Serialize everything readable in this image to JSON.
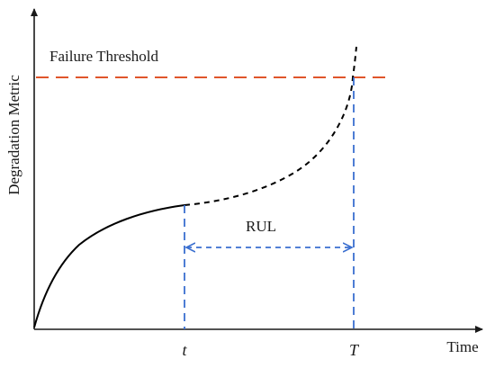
{
  "diagram": {
    "threshold_label": "Failure Threshold",
    "y_axis_label": "Degradation Metric",
    "x_axis_label": "Time",
    "current_time_label": "t",
    "failure_time_label": "T",
    "interval_label": "RUL",
    "colors": {
      "axis": "#1a1a1a",
      "observed_curve": "#000000",
      "predicted_curve": "#000000",
      "threshold": "#e0552b",
      "markers": "#3a6fd0",
      "text": "#1a1a1a"
    }
  }
}
